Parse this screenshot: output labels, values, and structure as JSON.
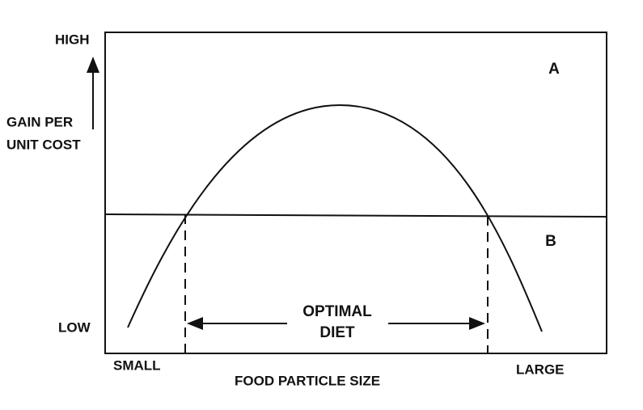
{
  "axis": {
    "y_high": "HIGH",
    "y_label_line1": "GAIN PER",
    "y_label_line2": "UNIT COST",
    "y_low": "LOW",
    "x_small": "SMALL",
    "x_large": "LARGE",
    "x_label": "FOOD PARTICLE SIZE"
  },
  "regions": {
    "a": "A",
    "b": "B"
  },
  "range": {
    "line1": "OPTIMAL",
    "line2": "DIET"
  }
}
